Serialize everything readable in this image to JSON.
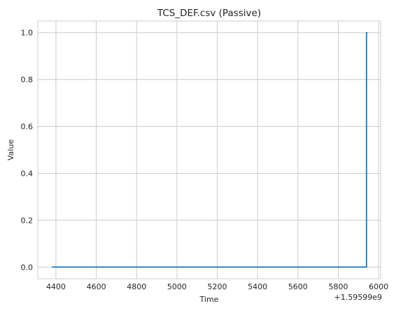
{
  "chart_data": {
    "type": "line",
    "title": "TCS_DEF.csv (Passive)",
    "xlabel": "Time",
    "ylabel": "Value",
    "x_offset_label": "+1.59599e9",
    "xlim": [
      4310,
      6010
    ],
    "ylim": [
      -0.05,
      1.05
    ],
    "x_ticks": [
      4400,
      4600,
      4800,
      5000,
      5200,
      5400,
      5600,
      5800,
      6000
    ],
    "y_ticks": [
      0.0,
      0.2,
      0.4,
      0.6,
      0.8,
      1.0
    ],
    "x_tick_labels": [
      "4400",
      "4600",
      "4800",
      "5000",
      "5200",
      "5400",
      "5600",
      "5800",
      "6000"
    ],
    "y_tick_labels": [
      "0.0",
      "0.2",
      "0.4",
      "0.6",
      "0.8",
      "1.0"
    ],
    "grid": true,
    "series": [
      {
        "color": "#1f77b4",
        "x": [
          4380,
          5940,
          5940,
          5945
        ],
        "y": [
          0,
          0,
          1,
          1
        ]
      }
    ]
  }
}
